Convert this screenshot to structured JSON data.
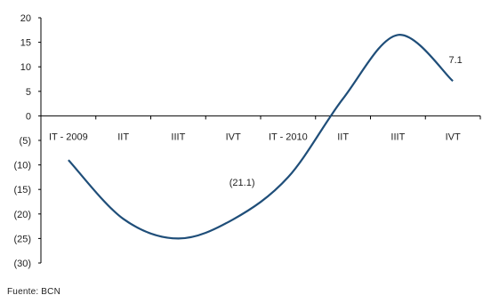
{
  "chart_data": {
    "type": "line",
    "categories": [
      "IT - 2009",
      "IIT",
      "IIIT",
      "IVT",
      "IT - 2010",
      "IIT",
      "IIIT",
      "IVT"
    ],
    "y_ticks": [
      "20",
      "15",
      "10",
      "5",
      "0",
      "(5)",
      "(10)",
      "(15)",
      "(20)",
      "(25)",
      "(30)"
    ],
    "ylim": [
      -30,
      20
    ],
    "grid": false,
    "series": [
      {
        "values": [
          -9.0,
          -21.0,
          -25.0,
          -21.1,
          -12.5,
          3.5,
          16.5,
          7.1
        ],
        "color": "#1f4e79"
      }
    ],
    "data_labels": [
      {
        "index": 3,
        "text": "(21.1)"
      },
      {
        "index": 7,
        "text": "7.1"
      }
    ]
  },
  "source": "Fuente: BCN"
}
